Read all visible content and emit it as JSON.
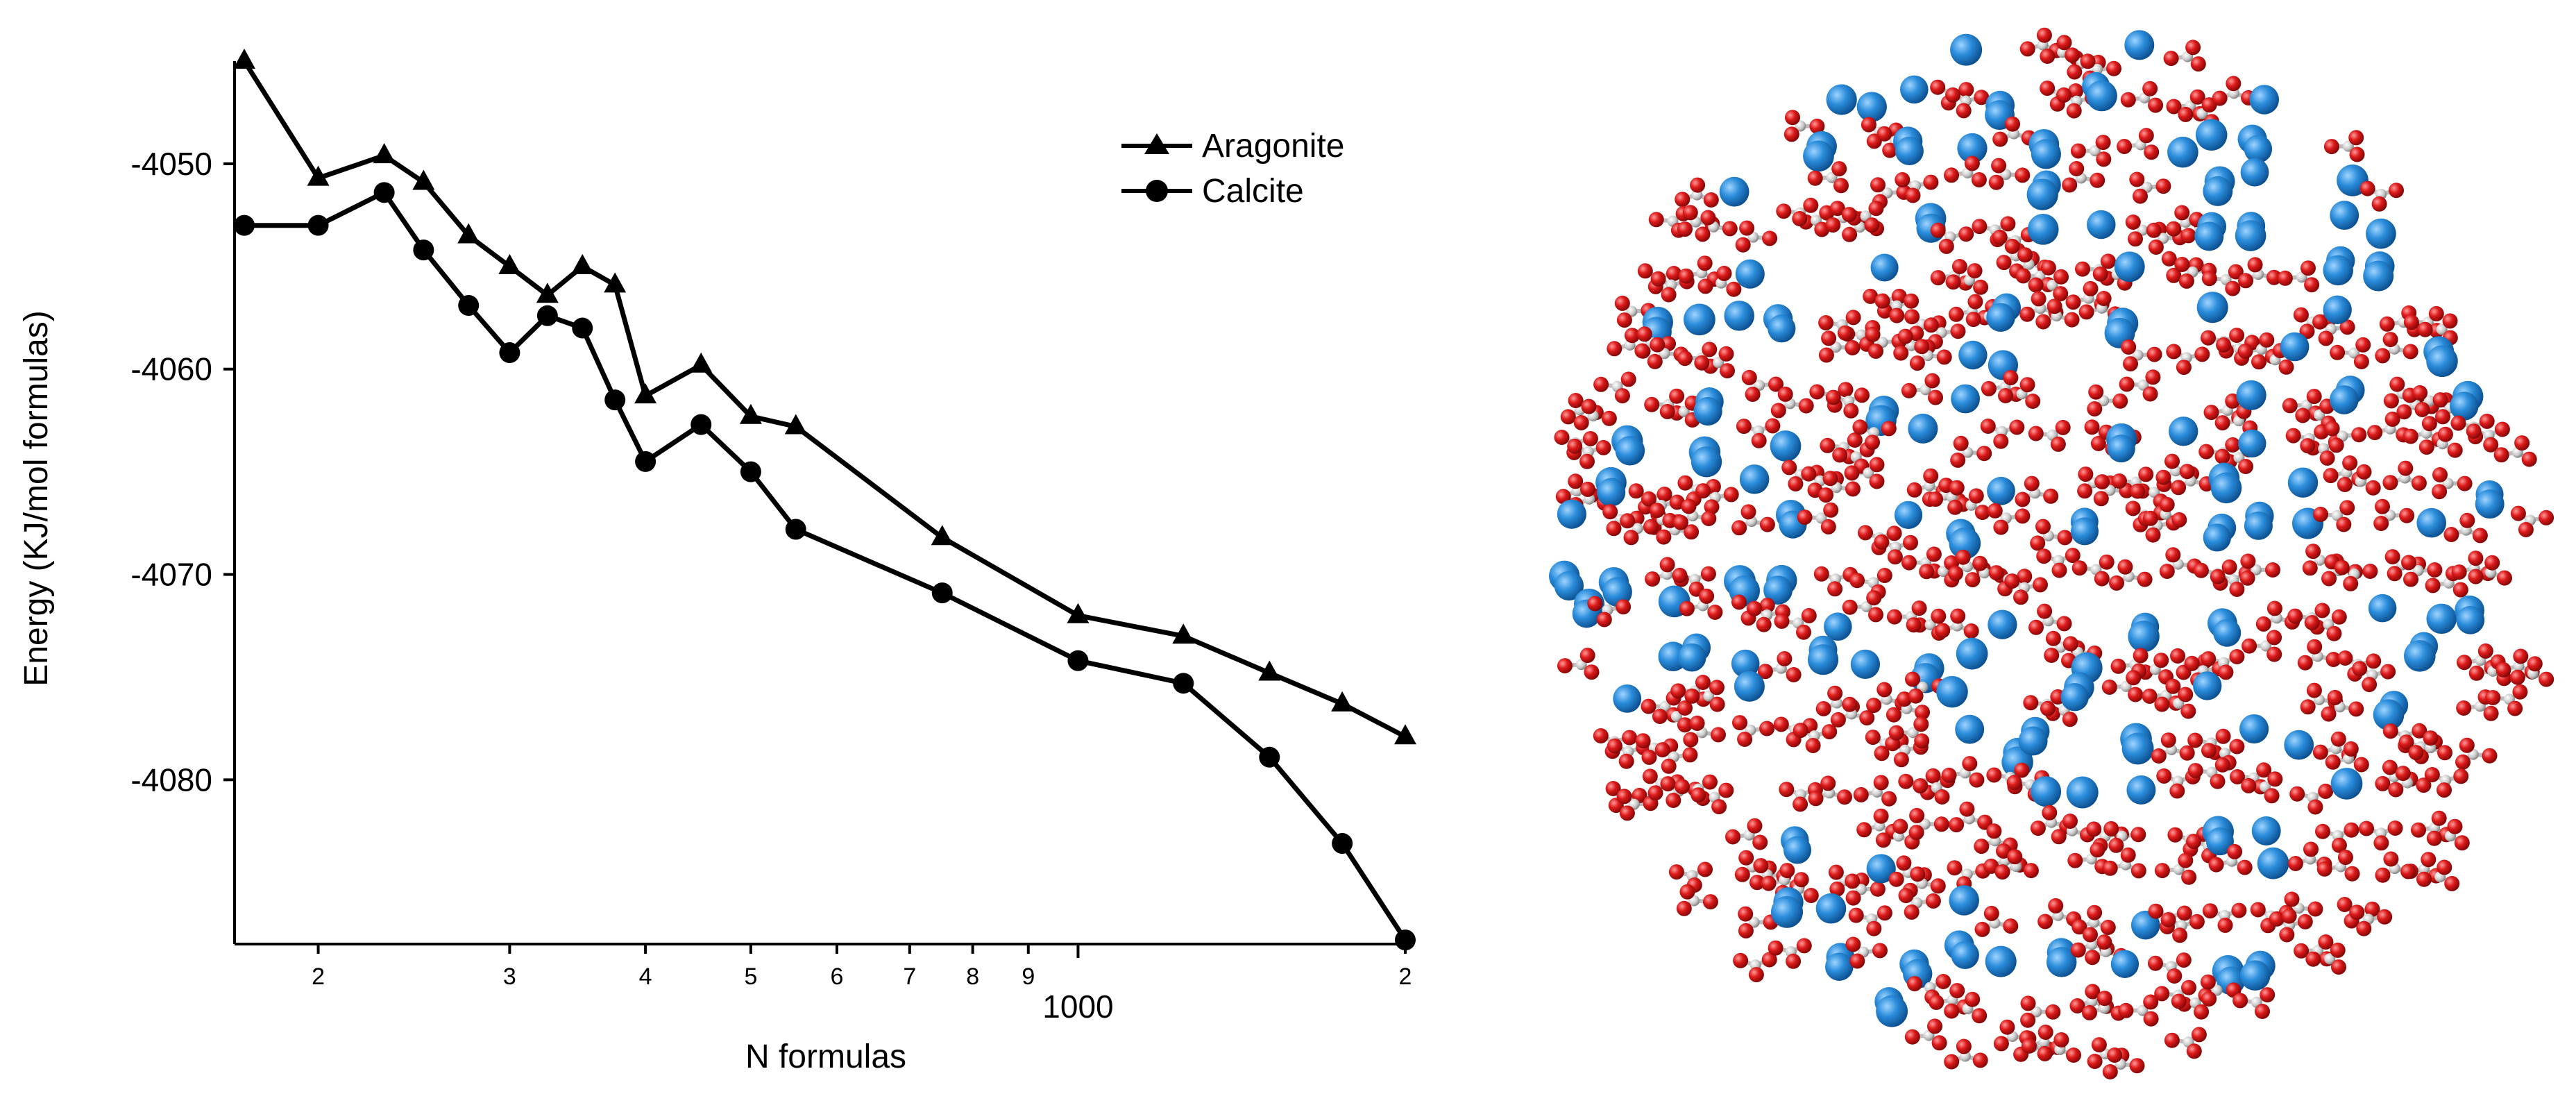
{
  "chart_data": [
    {
      "type": "line",
      "title": "",
      "xlabel": "N formulas",
      "ylabel": "Energy (KJ/mol formulas)",
      "xscale": "log",
      "xlim": [
        170,
        2000
      ],
      "ylim": [
        -4088,
        -4045
      ],
      "grid": false,
      "legend": {
        "position": "top-right"
      },
      "x_ticks": [
        {
          "value": 200,
          "label": "2"
        },
        {
          "value": 300,
          "label": "3"
        },
        {
          "value": 400,
          "label": "4"
        },
        {
          "value": 500,
          "label": "5"
        },
        {
          "value": 600,
          "label": "6"
        },
        {
          "value": 700,
          "label": "7"
        },
        {
          "value": 800,
          "label": "8"
        },
        {
          "value": 900,
          "label": "9"
        },
        {
          "value": 1000,
          "label": "1000"
        },
        {
          "value": 2000,
          "label": "2"
        }
      ],
      "y_ticks": [
        {
          "value": -4050,
          "label": "-4050"
        },
        {
          "value": -4060,
          "label": "-4060"
        },
        {
          "value": -4070,
          "label": "-4070"
        },
        {
          "value": -4080,
          "label": "-4080"
        }
      ],
      "series": [
        {
          "name": "Aragonite",
          "marker": "triangle",
          "color": "#000000",
          "x": [
            171,
            200,
            230,
            250,
            275,
            300,
            325,
            350,
            375,
            400,
            450,
            500,
            550,
            750,
            1000,
            1250,
            1500,
            1750,
            2000
          ],
          "y": [
            -4045.0,
            -4050.7,
            -4049.6,
            -4050.9,
            -4053.5,
            -4055.0,
            -4056.4,
            -4055.0,
            -4055.9,
            -4061.3,
            -4059.8,
            -4062.3,
            -4062.8,
            -4068.2,
            -4072.0,
            -4073.0,
            -4074.8,
            -4076.3,
            -4077.9
          ]
        },
        {
          "name": "Calcite",
          "marker": "circle",
          "color": "#000000",
          "x": [
            171,
            200,
            230,
            250,
            275,
            300,
            325,
            350,
            375,
            400,
            450,
            500,
            550,
            750,
            1000,
            1250,
            1500,
            1750,
            2000
          ],
          "y": [
            -4053.0,
            -4053.0,
            -4051.4,
            -4054.2,
            -4056.9,
            -4059.2,
            -4057.4,
            -4058.0,
            -4061.5,
            -4064.5,
            -4062.7,
            -4065.0,
            -4067.8,
            -4070.9,
            -4074.2,
            -4075.3,
            -4078.9,
            -4083.1,
            -4087.8
          ]
        }
      ]
    }
  ],
  "molecular_image": {
    "colors": {
      "calcium": "#1f7fd0",
      "oxygen": "#d21515",
      "carbon": "#c8c8c8"
    }
  }
}
